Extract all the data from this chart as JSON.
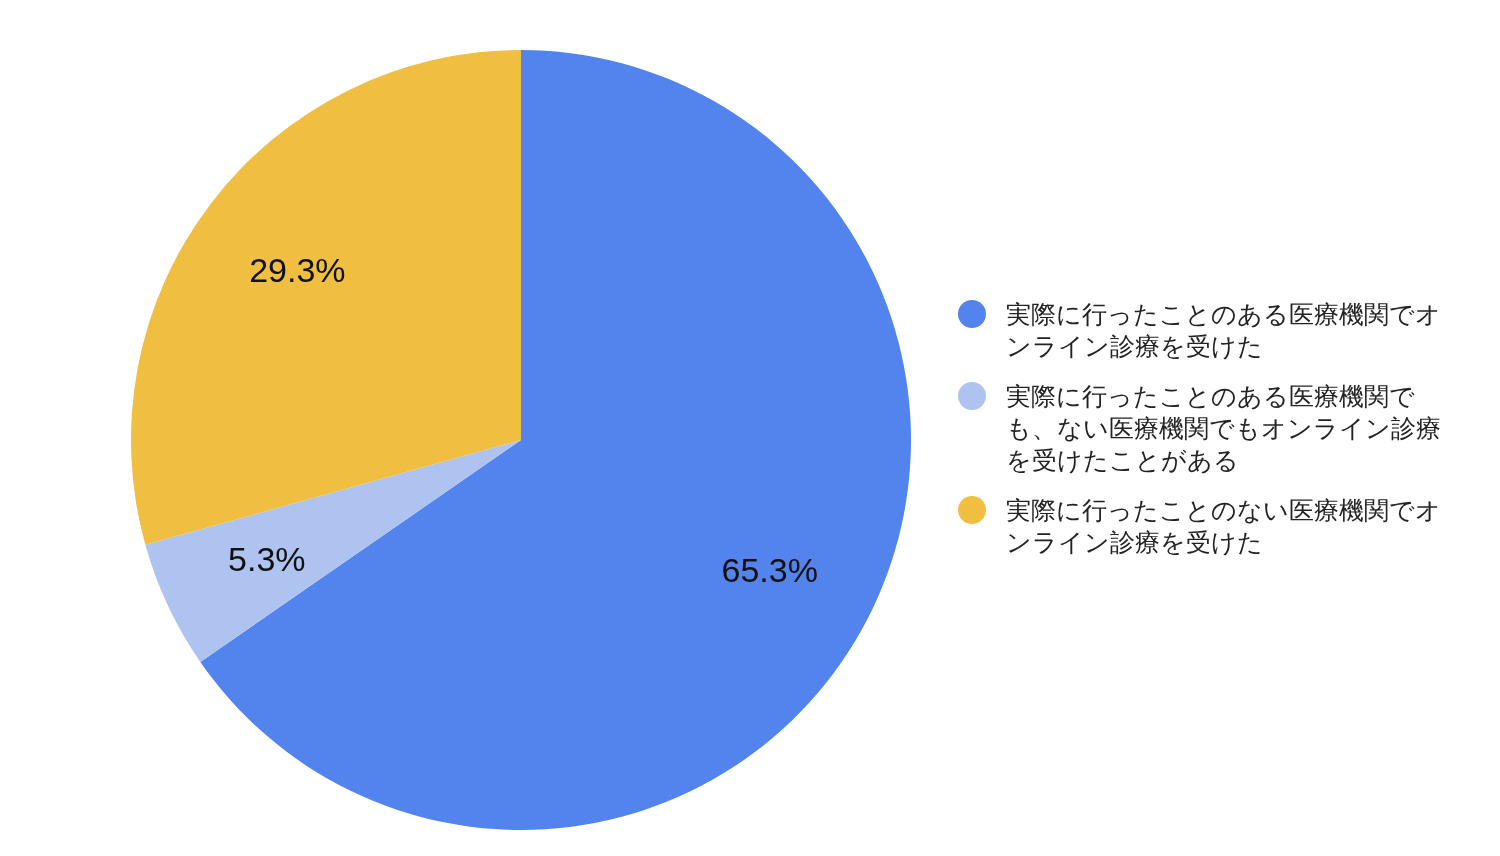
{
  "chart_data": {
    "type": "pie",
    "categories": [
      "実際に行ったことのある医療機関でオンライン診療を受けた",
      "実際に行ったことのある医療機関でも、ない医療機関でもオンライン診療を受けたことがある",
      "実際に行ったことのない医療機関でオンライン診療を受けた"
    ],
    "values": [
      65.3,
      5.3,
      29.3
    ],
    "colors": [
      "#5384ed",
      "#aec3f0",
      "#f0bf41"
    ],
    "value_labels": [
      "65.3%",
      "5.3%",
      "29.3%"
    ],
    "legend": "right"
  }
}
